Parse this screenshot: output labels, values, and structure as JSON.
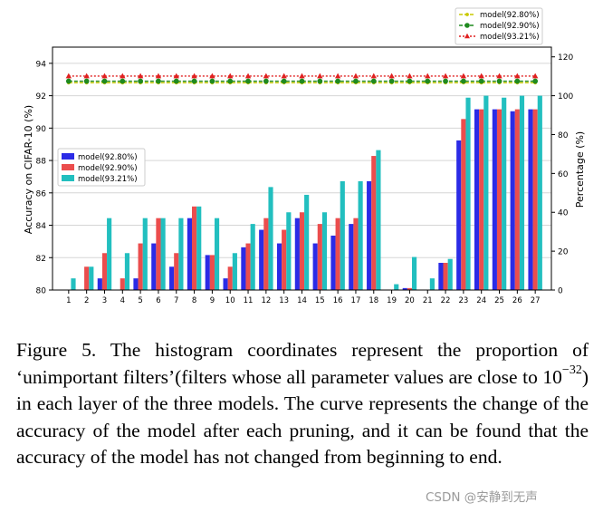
{
  "chart_data": {
    "type": "bar",
    "categories": [
      "1",
      "2",
      "3",
      "4",
      "5",
      "6",
      "7",
      "8",
      "9",
      "10",
      "11",
      "12",
      "13",
      "14",
      "15",
      "16",
      "17",
      "18",
      "19",
      "20",
      "21",
      "22",
      "23",
      "24",
      "25",
      "26",
      "27"
    ],
    "series": [
      {
        "name": "model(92.80%)",
        "color": "#2b2be6",
        "values": [
          0,
          0,
          6,
          0,
          6,
          24,
          12,
          37,
          18,
          6,
          22,
          31,
          24,
          37,
          24,
          28,
          34,
          56,
          0,
          1,
          0,
          14,
          77,
          93,
          93,
          92,
          93
        ]
      },
      {
        "name": "model(92.90%)",
        "color": "#eb4d4d",
        "values": [
          0,
          12,
          19,
          6,
          24,
          37,
          19,
          43,
          18,
          12,
          24,
          37,
          31,
          40,
          34,
          37,
          37,
          69,
          0,
          1,
          0,
          14,
          88,
          93,
          93,
          93,
          93
        ]
      },
      {
        "name": "model(93.21%)",
        "color": "#22bfbf",
        "values": [
          6,
          12,
          37,
          19,
          37,
          37,
          37,
          43,
          37,
          19,
          34,
          53,
          40,
          49,
          40,
          56,
          56,
          72,
          3,
          17,
          6,
          16,
          99,
          100,
          99,
          100,
          100
        ]
      }
    ],
    "lines": [
      {
        "name": "model(92.80%)",
        "color": "#c8c800",
        "marker": "circle-small",
        "accuracy": [
          92.8,
          92.8,
          92.8,
          92.8,
          92.8,
          92.8,
          92.8,
          92.8,
          92.8,
          92.8,
          92.8,
          92.8,
          92.8,
          92.8,
          92.8,
          92.8,
          92.8,
          92.8,
          92.8,
          92.8,
          92.8,
          92.8,
          92.8,
          92.8,
          92.8,
          92.8,
          92.8
        ]
      },
      {
        "name": "model(92.90%)",
        "color": "#1f8a1f",
        "marker": "circle",
        "accuracy": [
          92.9,
          92.9,
          92.9,
          92.9,
          92.9,
          92.9,
          92.9,
          92.9,
          92.9,
          92.9,
          92.9,
          92.9,
          92.9,
          92.9,
          92.9,
          92.9,
          92.9,
          92.9,
          92.9,
          92.9,
          92.9,
          92.9,
          92.9,
          92.9,
          92.9,
          92.9,
          92.9
        ]
      },
      {
        "name": "model(93.21%)",
        "color": "#e02020",
        "marker": "triangle",
        "accuracy": [
          93.21,
          93.21,
          93.21,
          93.21,
          93.21,
          93.21,
          93.21,
          93.21,
          93.21,
          93.21,
          93.21,
          93.21,
          93.21,
          93.21,
          93.21,
          93.21,
          93.21,
          93.21,
          93.21,
          93.21,
          93.21,
          93.21,
          93.21,
          93.21,
          93.21,
          93.21,
          93.21
        ]
      }
    ],
    "ylabel_left": "Accuracy on CIFAR-10 (%)",
    "ylabel_right": "Percentage (%)",
    "ylim_left": [
      80,
      95
    ],
    "yticks_left": [
      80,
      82,
      84,
      86,
      88,
      90,
      92,
      94
    ],
    "ylim_right": [
      0,
      125
    ],
    "yticks_right": [
      0,
      20,
      40,
      60,
      80,
      100,
      120
    ],
    "grid": true,
    "legend_bars": "center-left",
    "legend_lines": "top-right, outside"
  },
  "caption": {
    "part1": "Figure 5. The histogram coordinates represent the proportion of ‘unimportant filters’(filters whose all parameter values are close to 10",
    "exponent": "−32",
    "part2": ") in each layer of the three models.  The curve represents the change of the accuracy of the model after each pruning, and it can be found that the accuracy of the model has not changed from beginning to end."
  },
  "watermark": "CSDN @安静到无声"
}
